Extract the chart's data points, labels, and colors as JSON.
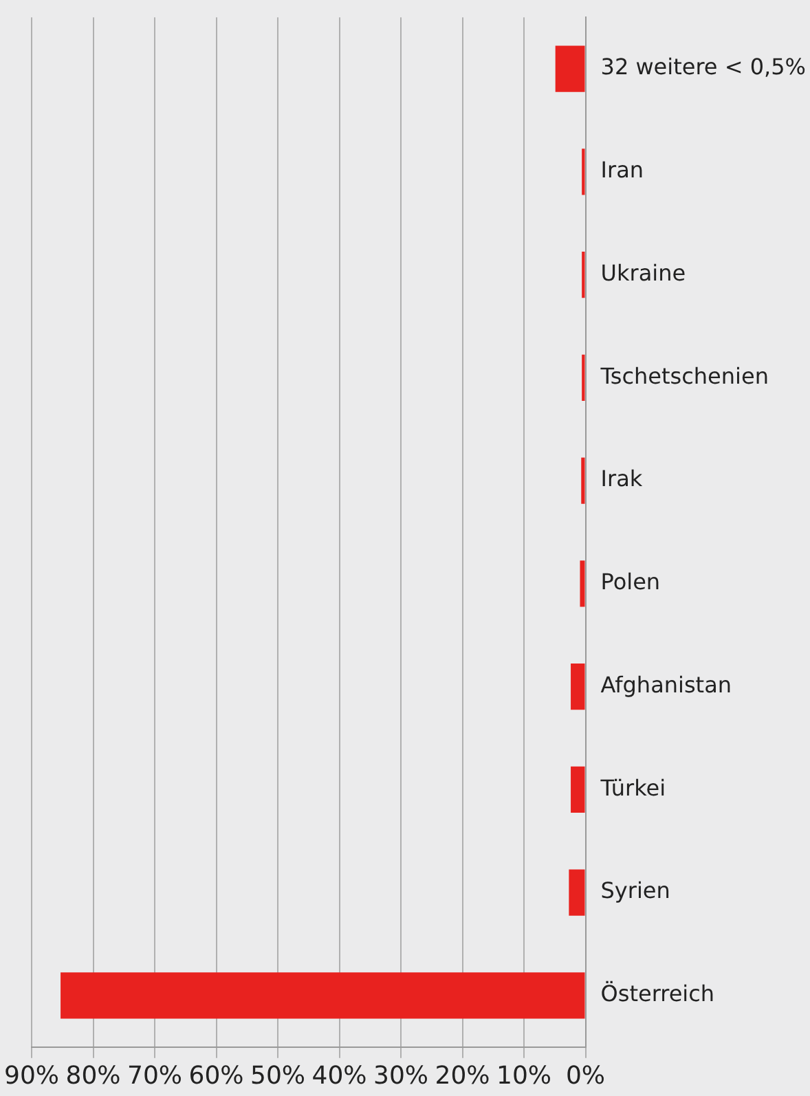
{
  "chart_data": {
    "type": "bar",
    "orientation": "horizontal",
    "categories": [
      "32 weitere < 0,5%",
      "Iran",
      "Ukraine",
      "Tschetschenien",
      "Irak",
      "Polen",
      "Afghanistan",
      "Türkei",
      "Syrien",
      "Österreich"
    ],
    "values": [
      4.9,
      0.6,
      0.6,
      0.6,
      0.7,
      0.9,
      2.4,
      2.4,
      2.7,
      85.3
    ],
    "color": "#e8221f",
    "xlim": [
      90,
      0
    ],
    "xticks": [
      {
        "value": 90,
        "label": "90%"
      },
      {
        "value": 80,
        "label": "80%"
      },
      {
        "value": 70,
        "label": "70%"
      },
      {
        "value": 60,
        "label": "60%"
      },
      {
        "value": 50,
        "label": "50%"
      },
      {
        "value": 40,
        "label": "40%"
      },
      {
        "value": 30,
        "label": "30%"
      },
      {
        "value": 20,
        "label": "20%"
      },
      {
        "value": 10,
        "label": "10%"
      },
      {
        "value": 0,
        "label": "0%"
      }
    ],
    "grid": "x",
    "legend": false
  }
}
